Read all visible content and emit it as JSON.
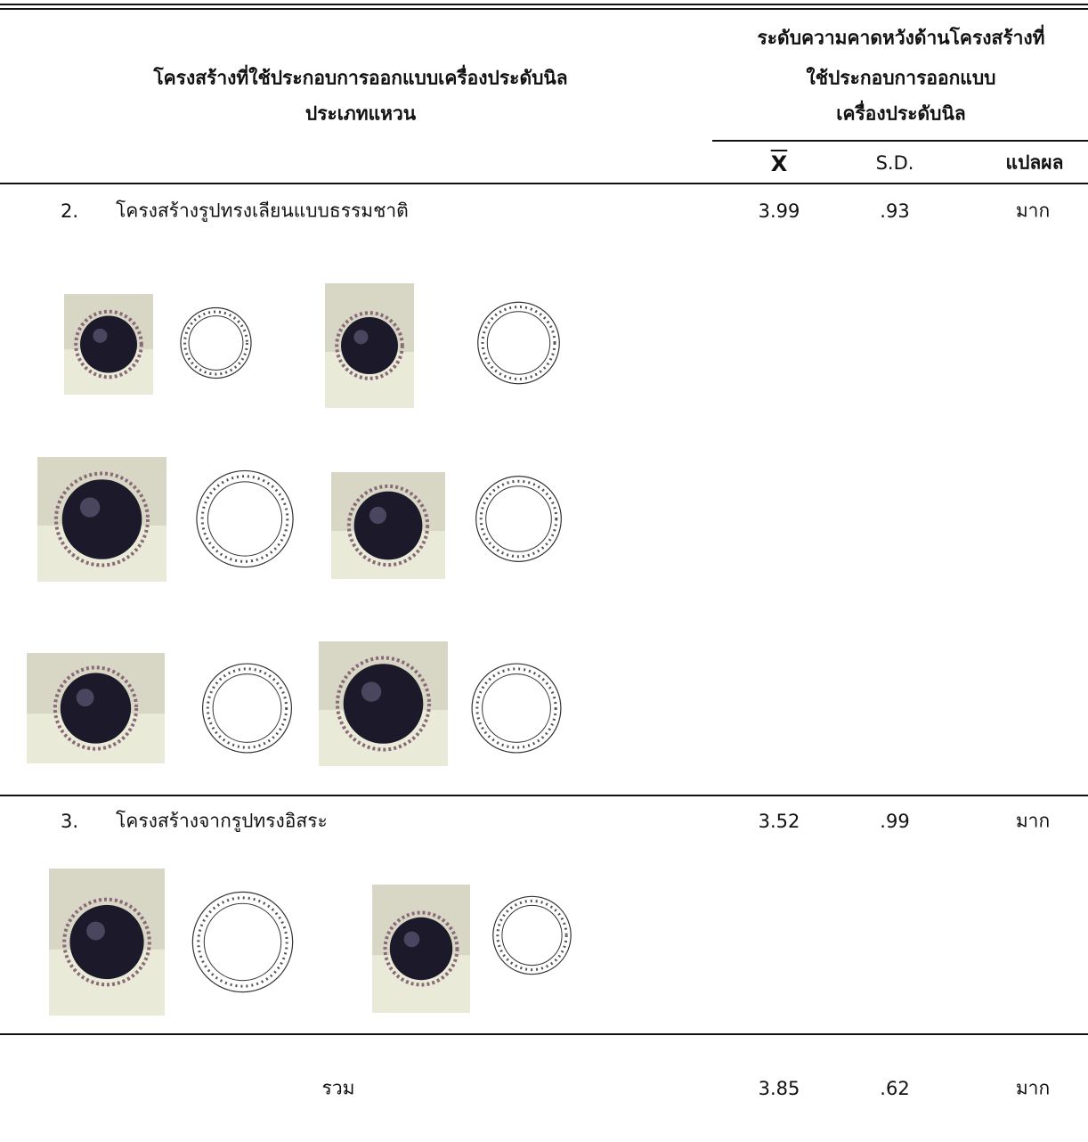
{
  "header": {
    "structure_title": [
      "โครงสร้างที่ใช้ประกอบการออกแบบเครื่องประดับนิล",
      "ประเภทแหวน"
    ],
    "level_title": [
      "ระดับความคาดหวังด้านโครงสร้างที่",
      "ใช้ประกอบการออกแบบ",
      "เครื่องประดับนิล"
    ],
    "mean": "X",
    "sd": "S.D.",
    "result": "แปลผล"
  },
  "rows": [
    {
      "number": "2.",
      "label": "โครงสร้างรูปทรงเลียนแบบธรรมชาติ",
      "mean": "3.99",
      "sd": ".93",
      "result": "มาก"
    },
    {
      "number": "3.",
      "label": "โครงสร้างจากรูปทรงอิสระ",
      "mean": "3.52",
      "sd": ".99",
      "result": "มาก"
    }
  ],
  "total": {
    "label": "รวม",
    "mean": "3.85",
    "sd": ".62",
    "result": "มาก"
  }
}
